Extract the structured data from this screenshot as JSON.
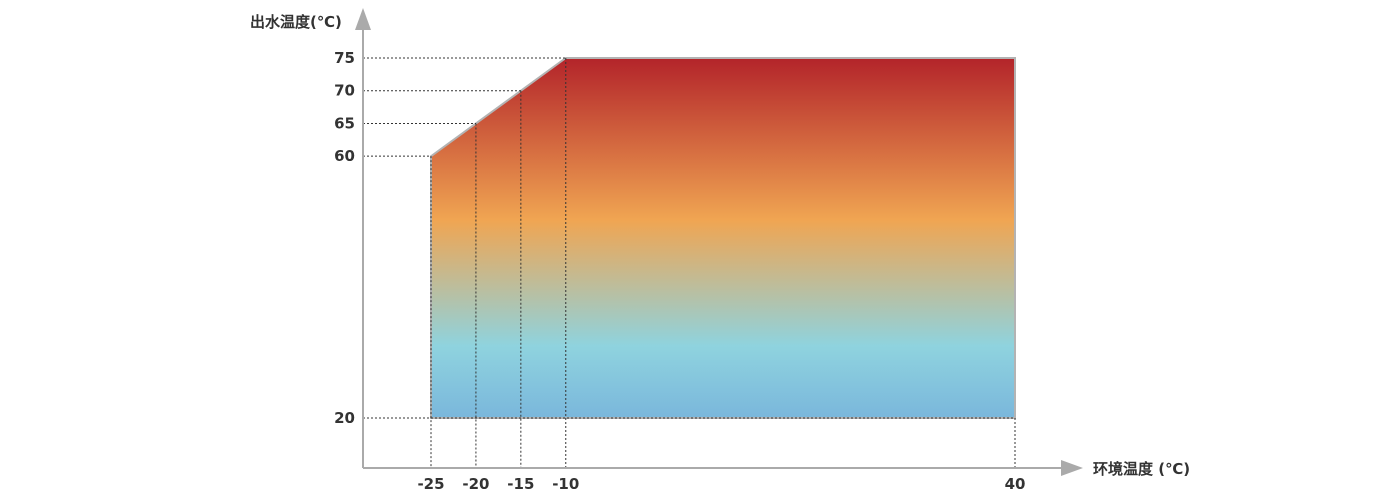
{
  "chart_data": {
    "type": "area",
    "xlabel": "环境温度 (℃)",
    "ylabel": "出水温度(℃)",
    "x_ticks": [
      -25,
      -20,
      -15,
      -10,
      40
    ],
    "y_ticks": [
      20,
      60,
      65,
      70,
      75
    ],
    "x_tick_labels": [
      "-25",
      "-20",
      "-15",
      "-10",
      "40"
    ],
    "y_tick_labels": [
      "20",
      "60",
      "65",
      "70",
      "75"
    ],
    "region": {
      "points": [
        {
          "x": -25,
          "y": 20
        },
        {
          "x": -25,
          "y": 60
        },
        {
          "x": -10,
          "y": 75
        },
        {
          "x": 40,
          "y": 75
        },
        {
          "x": 40,
          "y": 20
        }
      ]
    },
    "guides": [
      {
        "x": -25,
        "y": 60
      },
      {
        "x": -20,
        "y": 65
      },
      {
        "x": -15,
        "y": 70
      },
      {
        "x": -10,
        "y": 75
      },
      {
        "x": 40,
        "y": 20
      }
    ],
    "gradient_colors": [
      "#b3242a",
      "#f0a552",
      "#8fd3de",
      "#7ab7dc"
    ],
    "outline_color": "#b3b3b3",
    "axis_color": "#aaaaaa",
    "guide_color": "#333333",
    "grid": false
  }
}
